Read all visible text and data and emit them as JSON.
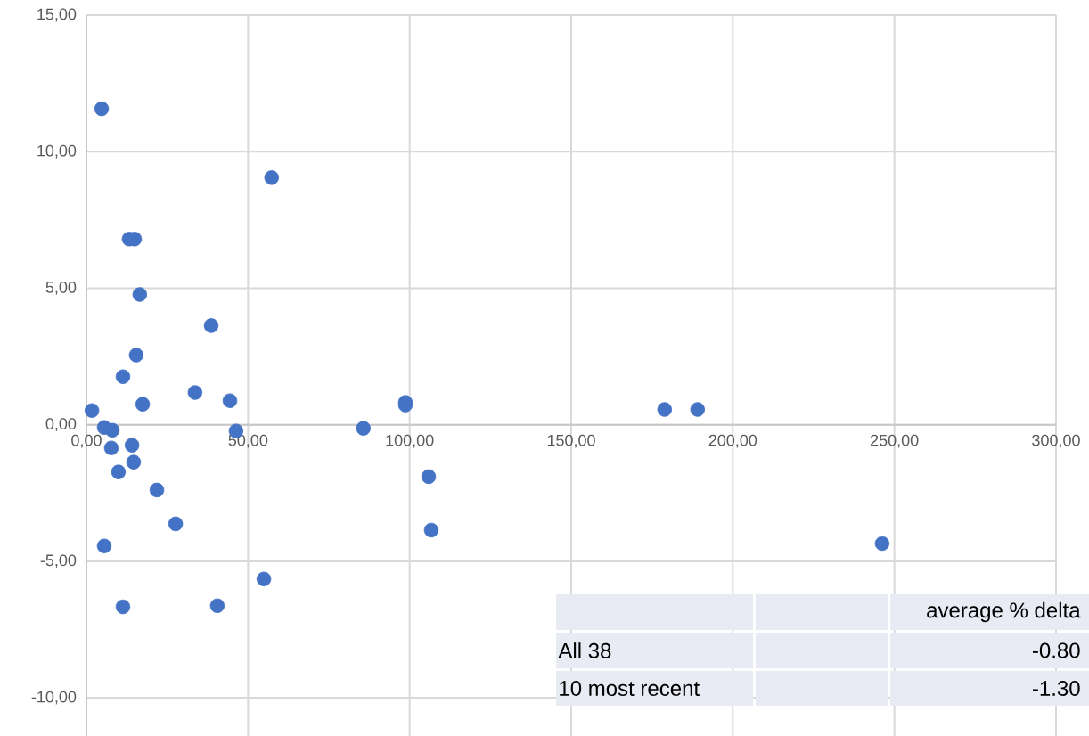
{
  "chart_data": {
    "type": "scatter",
    "xlim": [
      0,
      300
    ],
    "ylim": [
      -11.4,
      15
    ],
    "xticks": [
      {
        "value": 0,
        "label": "0,00"
      },
      {
        "value": 50,
        "label": "50,00"
      },
      {
        "value": 100,
        "label": "100,00"
      },
      {
        "value": 150,
        "label": "150,00"
      },
      {
        "value": 200,
        "label": "200,00"
      },
      {
        "value": 250,
        "label": "250,00"
      },
      {
        "value": 300,
        "label": "300,00"
      }
    ],
    "yticks": [
      {
        "value": -10,
        "label": "-10,00"
      },
      {
        "value": -5,
        "label": "-5,00"
      },
      {
        "value": 0,
        "label": "0,00"
      },
      {
        "value": 5,
        "label": "5,00"
      },
      {
        "value": 10,
        "label": "10,00"
      },
      {
        "value": 15,
        "label": "15,00"
      }
    ],
    "grid": true,
    "series": [
      {
        "color": "#4472c4",
        "x": [
          4.7,
          57.3,
          13.2,
          14.9,
          16.5,
          38.6,
          15.4,
          11.3,
          33.6,
          44.4,
          17.4,
          1.7,
          5.5,
          8.0,
          46.3,
          85.7,
          98.7,
          98.7,
          178.9,
          189.1,
          7.7,
          14.1,
          14.6,
          9.9,
          21.8,
          27.6,
          5.5,
          105.9,
          106.7,
          246.2,
          54.9,
          11.3,
          40.5
        ],
        "values": [
          11.57,
          9.05,
          6.8,
          6.8,
          4.77,
          3.63,
          2.55,
          1.76,
          1.18,
          0.88,
          0.75,
          0.52,
          -0.1,
          -0.2,
          -0.23,
          -0.13,
          0.82,
          0.72,
          0.56,
          0.56,
          -0.85,
          -0.75,
          -1.37,
          -1.73,
          -2.39,
          -3.63,
          -4.44,
          -1.9,
          -3.86,
          -4.35,
          -5.65,
          -6.67,
          -6.63
        ]
      }
    ],
    "annotations": [
      "average % delta",
      "All 38",
      "-0.80",
      "10 most recent",
      "-1.30"
    ]
  }
}
